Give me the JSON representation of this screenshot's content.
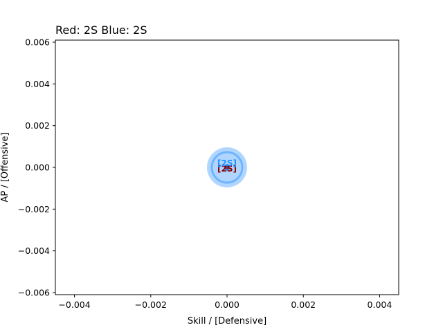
{
  "chart_data": {
    "type": "scatter",
    "title": "Red: 2S   Blue: 2S",
    "xlabel": "Skill / [Defensive]",
    "ylabel": "AP / [Offensive]",
    "xlim": [
      -0.0045,
      0.0045
    ],
    "ylim": [
      -0.0061,
      0.0061
    ],
    "x_ticks": [
      -0.004,
      -0.002,
      0.0,
      0.002,
      0.004
    ],
    "x_tick_labels": [
      "−0.004",
      "−0.002",
      "0.000",
      "0.002",
      "0.004"
    ],
    "y_ticks": [
      -0.006,
      -0.004,
      -0.002,
      0.0,
      0.002,
      0.004,
      0.006
    ],
    "y_tick_labels": [
      "−0.006",
      "−0.004",
      "−0.002",
      "0.000",
      "0.002",
      "0.004",
      "0.006"
    ],
    "grid": false,
    "series": [
      {
        "name": "Red",
        "color": "#8b0000",
        "points": [
          {
            "x": 0.0,
            "y": 0.0,
            "label": "[2S]"
          }
        ]
      },
      {
        "name": "Blue",
        "color": "#1e90ff",
        "points": [
          {
            "x": 0.0,
            "y": 0.0,
            "label": "[2S]"
          }
        ]
      }
    ],
    "highlight_color": "#6fb4ff"
  }
}
